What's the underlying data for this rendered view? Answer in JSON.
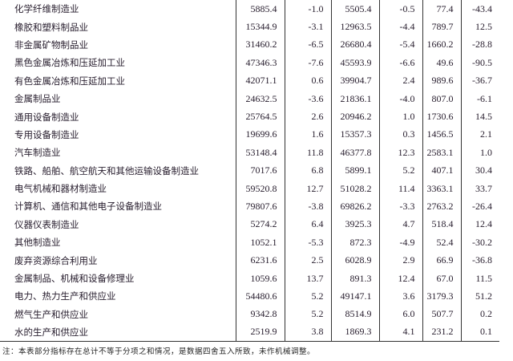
{
  "rows": [
    {
      "name": "化学纤维制造业",
      "v": [
        "5885.4",
        "-1.0",
        "5505.4",
        "-0.5",
        "77.4",
        "-43.4"
      ]
    },
    {
      "name": "橡胶和塑料制品业",
      "v": [
        "15344.9",
        "-3.1",
        "12963.5",
        "-4.4",
        "789.7",
        "12.5"
      ]
    },
    {
      "name": "非金属矿物制品业",
      "v": [
        "31460.2",
        "-6.5",
        "26680.4",
        "-5.4",
        "1660.2",
        "-28.8"
      ]
    },
    {
      "name": "黑色金属冶炼和压延加工业",
      "v": [
        "47346.3",
        "-7.6",
        "45593.9",
        "-6.6",
        "49.6",
        "-90.5"
      ]
    },
    {
      "name": "有色金属冶炼和压延加工业",
      "v": [
        "42071.1",
        "0.6",
        "39904.7",
        "2.4",
        "989.6",
        "-36.7"
      ]
    },
    {
      "name": "金属制品业",
      "v": [
        "24632.5",
        "-3.6",
        "21836.1",
        "-4.0",
        "807.0",
        "-6.1"
      ]
    },
    {
      "name": "通用设备制造业",
      "v": [
        "25764.5",
        "2.6",
        "20946.2",
        "1.0",
        "1730.6",
        "14.5"
      ]
    },
    {
      "name": "专用设备制造业",
      "v": [
        "19699.6",
        "1.6",
        "15357.3",
        "0.3",
        "1456.5",
        "2.1"
      ]
    },
    {
      "name": "汽车制造业",
      "v": [
        "53148.4",
        "11.8",
        "46377.8",
        "12.3",
        "2583.1",
        "1.0"
      ]
    },
    {
      "name": "铁路、船舶、航空航天和其他运输设备制造业",
      "v": [
        "7017.6",
        "6.8",
        "5899.1",
        "5.2",
        "407.1",
        "30.4"
      ]
    },
    {
      "name": "电气机械和器材制造业",
      "v": [
        "59520.8",
        "12.7",
        "51028.2",
        "11.4",
        "3363.1",
        "33.7"
      ]
    },
    {
      "name": "计算机、通信和其他电子设备制造业",
      "v": [
        "79807.6",
        "-3.8",
        "69826.2",
        "-3.3",
        "2763.2",
        "-26.4"
      ]
    },
    {
      "name": "仪器仪表制造业",
      "v": [
        "5274.2",
        "6.4",
        "3925.3",
        "4.7",
        "518.4",
        "12.4"
      ]
    },
    {
      "name": "其他制造业",
      "v": [
        "1052.1",
        "-5.3",
        "872.3",
        "-4.9",
        "52.4",
        "-30.2"
      ]
    },
    {
      "name": "废弃资源综合利用业",
      "v": [
        "6231.6",
        "2.5",
        "6028.9",
        "2.9",
        "66.9",
        "-36.8"
      ]
    },
    {
      "name": "金属制品、机械和设备修理业",
      "v": [
        "1059.6",
        "13.7",
        "891.3",
        "12.4",
        "67.0",
        "11.5"
      ]
    },
    {
      "name": "电力、热力生产和供应业",
      "v": [
        "54480.6",
        "5.2",
        "49147.1",
        "3.6",
        "3179.3",
        "51.2"
      ]
    },
    {
      "name": "燃气生产和供应业",
      "v": [
        "9342.8",
        "5.2",
        "8514.9",
        "6.0",
        "507.7",
        "0.2"
      ]
    },
    {
      "name": "水的生产和供应业",
      "v": [
        "2519.9",
        "3.8",
        "1869.3",
        "4.1",
        "231.2",
        "0.1"
      ]
    }
  ],
  "note": "注：本表部分指标存在总计不等于分项之和情况，是数据四舍五入所致，未作机械调整。"
}
